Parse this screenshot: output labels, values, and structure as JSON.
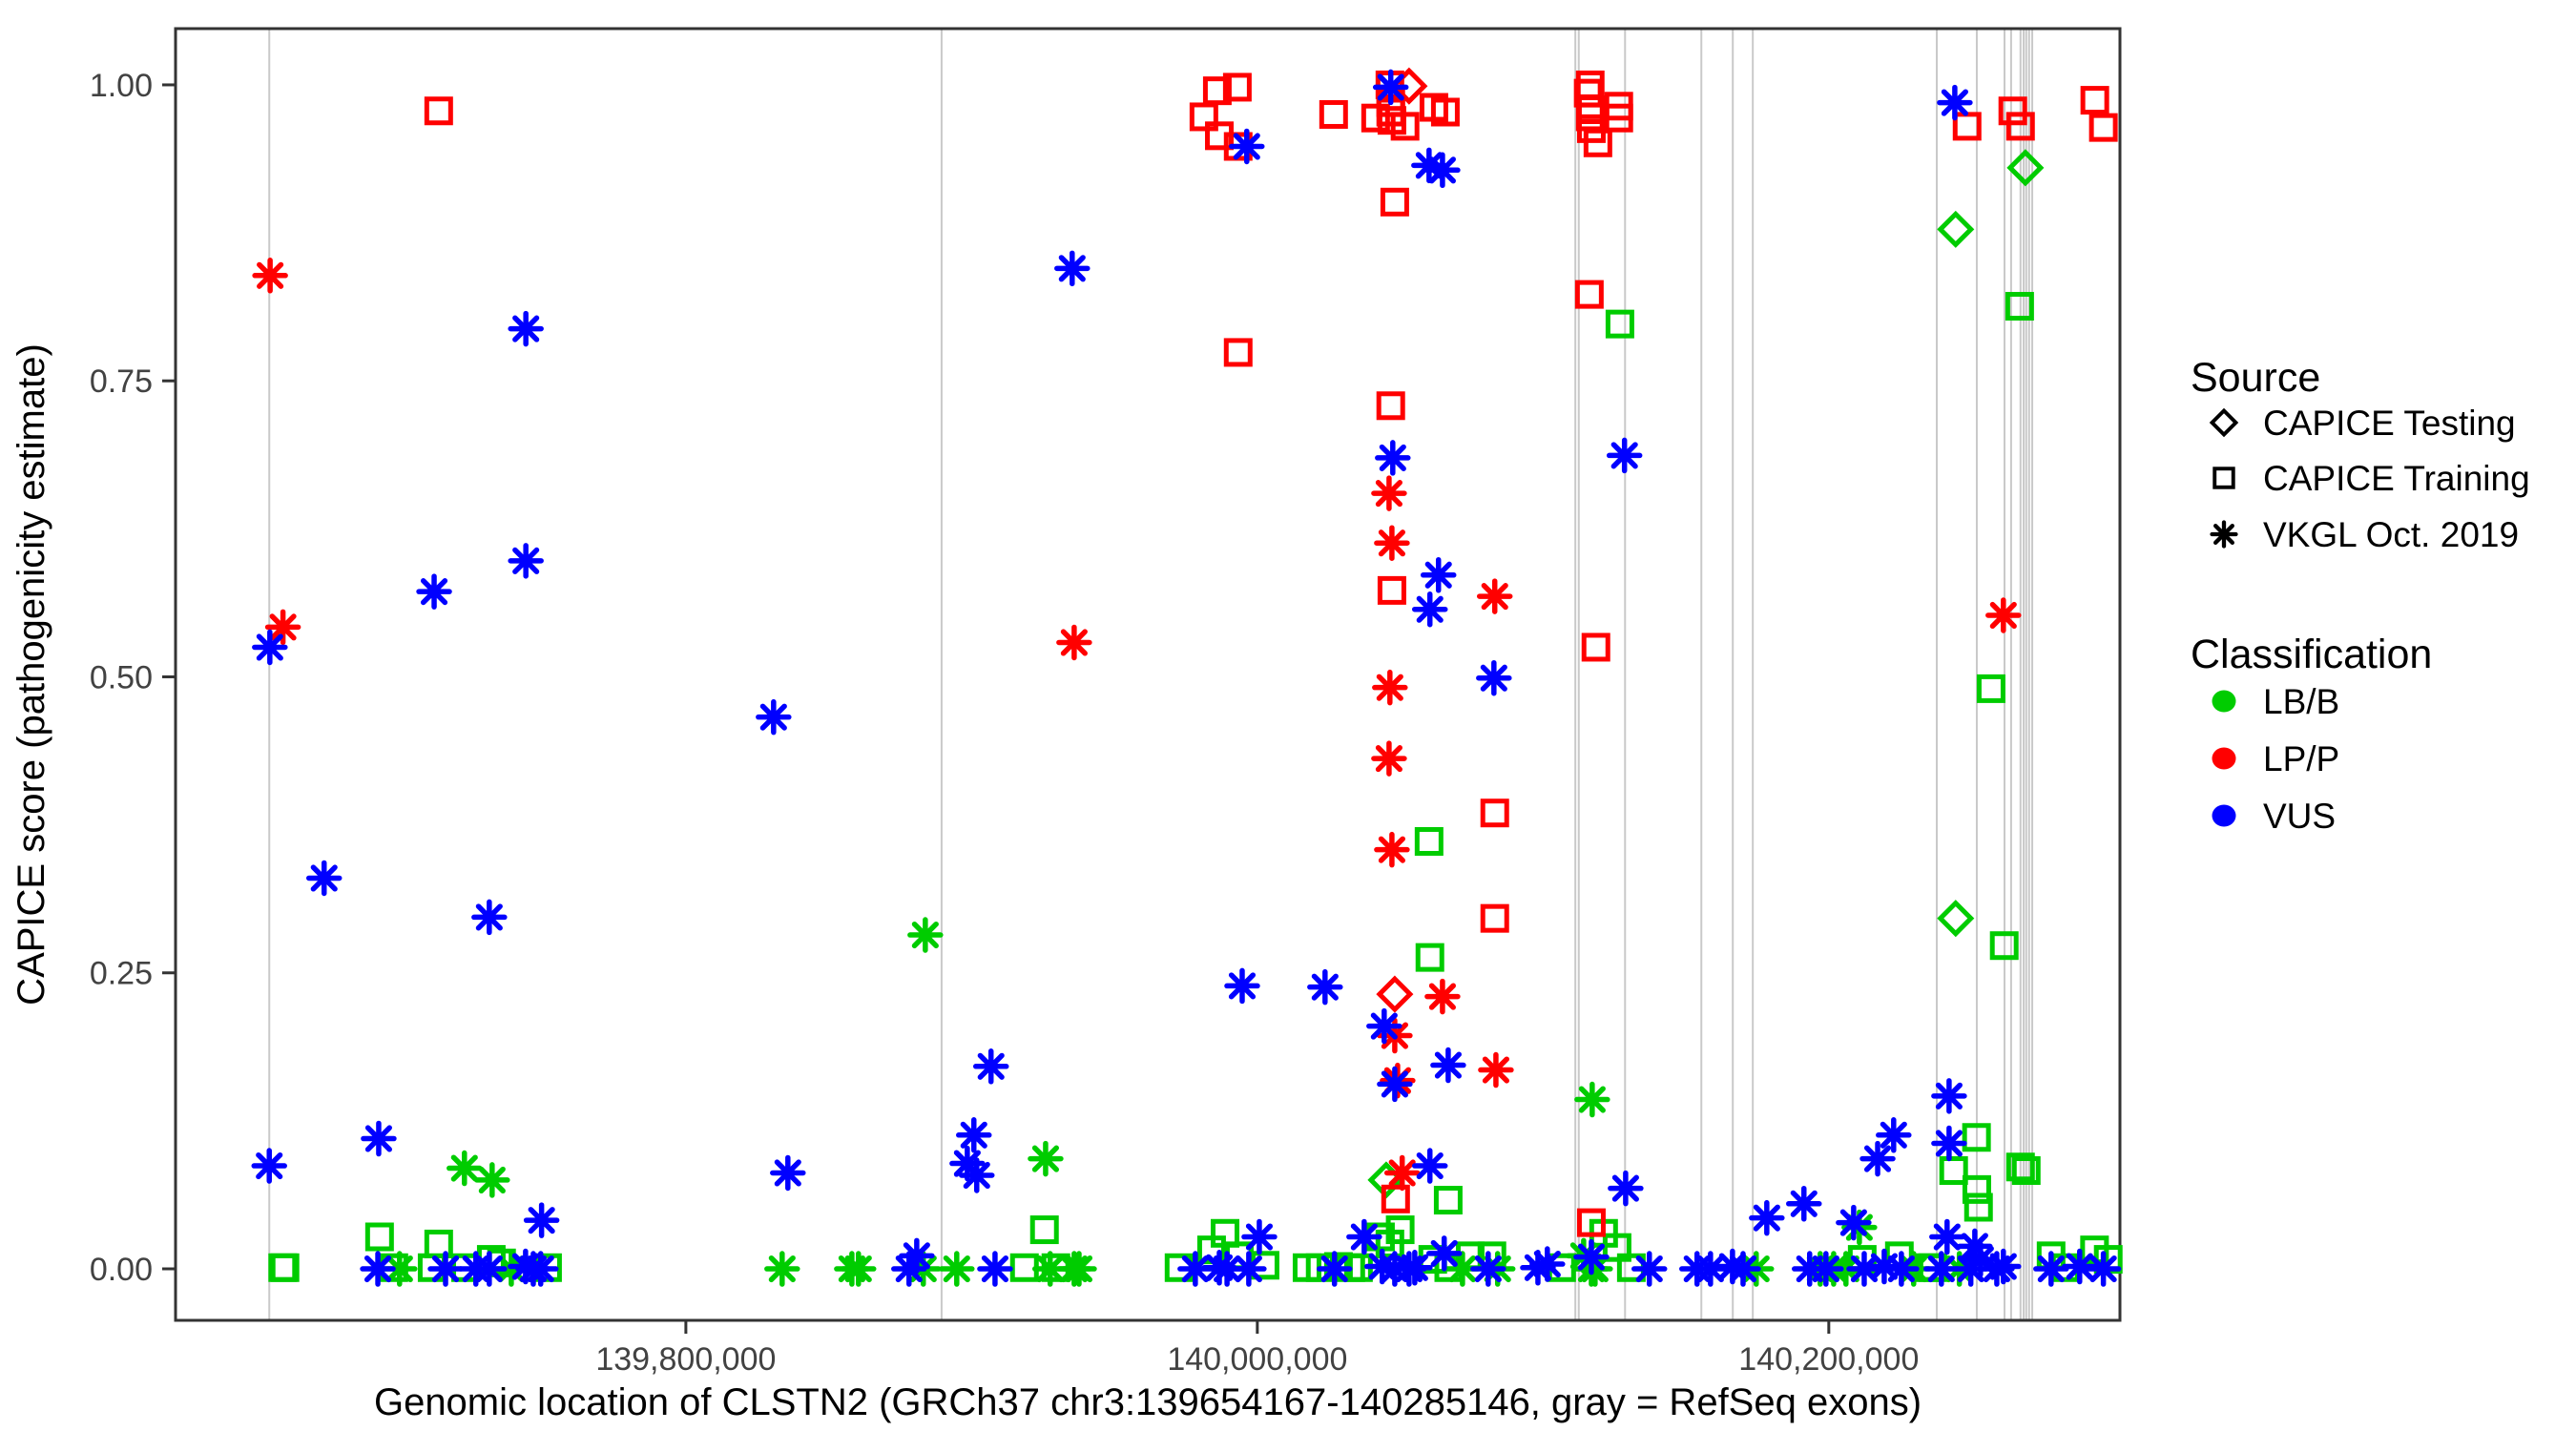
{
  "chart_data": {
    "type": "scatter",
    "title": "",
    "xlabel": "Genomic location of CLSTN2 (GRCh37 chr3:139654167-140285146, gray = RefSeq exons)",
    "ylabel": "CAPICE score (pathogenicity estimate)",
    "xlim": [
      139621400,
      140301900
    ],
    "ylim": [
      -0.0435,
      1.0475
    ],
    "grid": "off",
    "x_ticks": [
      {
        "value": 139800000,
        "label": "139,800,000"
      },
      {
        "value": 140000000,
        "label": "140,000,000"
      },
      {
        "value": 140200000,
        "label": "140,200,000"
      }
    ],
    "y_ticks": [
      {
        "value": 0.0,
        "label": "0.00"
      },
      {
        "value": 0.25,
        "label": "0.25"
      },
      {
        "value": 0.5,
        "label": "0.50"
      },
      {
        "value": 0.75,
        "label": "0.75"
      },
      {
        "value": 1.0,
        "label": "1.00"
      }
    ],
    "colors": {
      "LB/B": "#00cc00",
      "LP/P": "#ff0000",
      "VUS": "#0000ff",
      "exon": "#c9c9c9",
      "panel_border": "#333333",
      "tick": "#333333"
    },
    "refseq_exon_positions": [
      139654200,
      139889500,
      140111300,
      140112500,
      140128700,
      140155400,
      140166400,
      140173400,
      140237800,
      140251800,
      140261500,
      140263800,
      140267100,
      140268200,
      140269100,
      140270100,
      140271200
    ],
    "legend": {
      "source_title": "Source",
      "source_items": [
        {
          "label": "CAPICE Testing",
          "symbol": "diamond"
        },
        {
          "label": "CAPICE Training",
          "symbol": "square"
        },
        {
          "label": "VKGL Oct. 2019",
          "symbol": "asterisk"
        }
      ],
      "classification_title": "Classification",
      "classification_items": [
        {
          "label": "LB/B",
          "class": "LB/B"
        },
        {
          "label": "LP/P",
          "class": "LP/P"
        },
        {
          "label": "VUS",
          "class": "VUS"
        }
      ],
      "position": "right"
    },
    "series": [
      {
        "source": "CAPICE Testing",
        "classification": "LB/B",
        "symbol": "diamond",
        "points": [
          [
            140268800,
            0.93
          ],
          [
            140244400,
            0.878
          ],
          [
            140244400,
            0.296
          ],
          [
            140045100,
            0.075
          ]
        ]
      },
      {
        "source": "CAPICE Testing",
        "classification": "LP/P",
        "symbol": "diamond",
        "points": [
          [
            140053100,
            0.999
          ],
          [
            140048100,
            0.232
          ]
        ]
      },
      {
        "source": "CAPICE Training",
        "classification": "LB/B",
        "symbol": "square",
        "points": [
          [
            139658900,
            0.001
          ],
          [
            139659700,
            0.001
          ],
          [
            139692800,
            0.027
          ],
          [
            139697800,
            0.001
          ],
          [
            139711200,
            0.001
          ],
          [
            139713500,
            0.021
          ],
          [
            139722900,
            0.001
          ],
          [
            139731900,
            0.008
          ],
          [
            139735500,
            0.005
          ],
          [
            139751600,
            0.001
          ],
          [
            139918500,
            0.001
          ],
          [
            139925500,
            0.033
          ],
          [
            139929500,
            0.001
          ],
          [
            139972600,
            0.001
          ],
          [
            139984000,
            0.016
          ],
          [
            139988700,
            0.03
          ],
          [
            139993700,
            0.011
          ],
          [
            140002700,
            0.003
          ],
          [
            140017400,
            0.001
          ],
          [
            140022000,
            0.001
          ],
          [
            140028400,
            0.002
          ],
          [
            140032700,
            0.001
          ],
          [
            140035400,
            0.001
          ],
          [
            140043100,
            0.027
          ],
          [
            140046400,
            0.021
          ],
          [
            140050000,
            0.033
          ],
          [
            140060100,
            0.361
          ],
          [
            140060400,
            0.263
          ],
          [
            140061400,
            0.008
          ],
          [
            140066800,
            0.058
          ],
          [
            140067000,
            0.001
          ],
          [
            140074500,
            0.011
          ],
          [
            140082100,
            0.011
          ],
          [
            140106500,
            0.001
          ],
          [
            140121200,
            0.03
          ],
          [
            140125900,
            0.018
          ],
          [
            140126900,
            0.798
          ],
          [
            140130900,
            0.001
          ],
          [
            140211700,
            0.008
          ],
          [
            140224700,
            0.011
          ],
          [
            140235100,
            0.001
          ],
          [
            140236400,
            0.001
          ],
          [
            140243700,
            0.083
          ],
          [
            140251700,
            0.111
          ],
          [
            140251800,
            0.067
          ],
          [
            140252400,
            0.052
          ],
          [
            140256800,
            0.49
          ],
          [
            140261400,
            0.273
          ],
          [
            140266800,
            0.813
          ],
          [
            140267100,
            0.086
          ],
          [
            140269100,
            0.083
          ],
          [
            140277800,
            0.011
          ],
          [
            140282800,
            0.001
          ],
          [
            140293000,
            0.016
          ],
          [
            140297800,
            0.008
          ]
        ]
      },
      {
        "source": "CAPICE Training",
        "classification": "LP/P",
        "symbol": "square",
        "points": [
          [
            139713500,
            0.978
          ],
          [
            139981300,
            0.973
          ],
          [
            139986000,
            0.995
          ],
          [
            139986700,
            0.957
          ],
          [
            139993000,
            0.998
          ],
          [
            139993300,
            0.948
          ],
          [
            139993300,
            0.774
          ],
          [
            140026700,
            0.975
          ],
          [
            140041400,
            0.972
          ],
          [
            140046400,
            1.0
          ],
          [
            140046700,
            0.985
          ],
          [
            140046700,
            0.977
          ],
          [
            140047100,
            0.97
          ],
          [
            140046700,
            0.729
          ],
          [
            140047100,
            0.573
          ],
          [
            140048100,
            0.901
          ],
          [
            140048400,
            0.059
          ],
          [
            140051700,
            0.965
          ],
          [
            140061800,
            0.981
          ],
          [
            140065800,
            0.977
          ],
          [
            140083100,
            0.385
          ],
          [
            140083100,
            0.296
          ],
          [
            140115800,
            0.993
          ],
          [
            140116500,
            1.0
          ],
          [
            140116500,
            0.973
          ],
          [
            140116900,
            0.979
          ],
          [
            140116900,
            0.963
          ],
          [
            140116900,
            0.039
          ],
          [
            140119200,
            0.951
          ],
          [
            140118500,
            0.525
          ],
          [
            140126500,
            0.982
          ],
          [
            140126500,
            0.972
          ],
          [
            140116200,
            0.823
          ],
          [
            140248400,
            0.965
          ],
          [
            140264400,
            0.978
          ],
          [
            140267100,
            0.965
          ],
          [
            140293100,
            0.987
          ],
          [
            140296100,
            0.964
          ]
        ]
      },
      {
        "source": "VKGL Oct. 2019",
        "classification": "LB/B",
        "symbol": "asterisk",
        "points": [
          [
            139722500,
            0.085
          ],
          [
            139732200,
            0.075
          ],
          [
            139883800,
            0.282
          ],
          [
            139925900,
            0.093
          ],
          [
            140117200,
            0.143
          ],
          [
            140210700,
            0.035
          ],
          [
            140114200,
            0.011
          ],
          [
            139699800,
            0.0
          ],
          [
            139738900,
            0.0
          ],
          [
            139833700,
            0.0
          ],
          [
            139858100,
            0.0
          ],
          [
            139860400,
            0.0
          ],
          [
            139883100,
            0.0
          ],
          [
            139894800,
            0.0
          ],
          [
            139927500,
            0.0
          ],
          [
            139935900,
            0.0
          ],
          [
            139937600,
            0.0
          ],
          [
            140071800,
            0.0
          ],
          [
            140084100,
            0.0
          ],
          [
            140116900,
            0.0
          ],
          [
            140118200,
            0.0
          ],
          [
            140174600,
            0.0
          ],
          [
            140197000,
            0.0
          ],
          [
            140201700,
            0.0
          ],
          [
            140206000,
            0.0
          ],
          [
            140229700,
            0.0
          ],
          [
            140245700,
            0.0
          ]
        ]
      },
      {
        "source": "VKGL Oct. 2019",
        "classification": "LP/P",
        "symbol": "asterisk",
        "points": [
          [
            139654500,
            0.839
          ],
          [
            139659000,
            0.542
          ],
          [
            139935900,
            0.529
          ],
          [
            140046100,
            0.655
          ],
          [
            140047100,
            0.613
          ],
          [
            140083100,
            0.568
          ],
          [
            140046400,
            0.491
          ],
          [
            140046100,
            0.431
          ],
          [
            140047100,
            0.354
          ],
          [
            140064800,
            0.23
          ],
          [
            140048100,
            0.197
          ],
          [
            140083500,
            0.168
          ],
          [
            140049100,
            0.159
          ],
          [
            140261100,
            0.552
          ],
          [
            140050700,
            0.081
          ]
        ]
      },
      {
        "source": "VKGL Oct. 2019",
        "classification": "VUS",
        "symbol": "asterisk",
        "points": [
          [
            139654400,
            0.525
          ],
          [
            139654200,
            0.087
          ],
          [
            139673400,
            0.33
          ],
          [
            139692500,
            0.11
          ],
          [
            139711900,
            0.572
          ],
          [
            139731200,
            0.297
          ],
          [
            139744000,
            0.794
          ],
          [
            139744000,
            0.598
          ],
          [
            139749500,
            0.041
          ],
          [
            139830700,
            0.466
          ],
          [
            139835700,
            0.081
          ],
          [
            139880800,
            0.011
          ],
          [
            139898500,
            0.089
          ],
          [
            139900800,
            0.113
          ],
          [
            139901800,
            0.079
          ],
          [
            139906800,
            0.171
          ],
          [
            139935200,
            0.845
          ],
          [
            139994700,
            0.239
          ],
          [
            139996300,
            0.948
          ],
          [
            140000700,
            0.027
          ],
          [
            140023700,
            0.238
          ],
          [
            140037400,
            0.027
          ],
          [
            140044400,
            0.205
          ],
          [
            140046700,
            0.998
          ],
          [
            140047400,
            0.685
          ],
          [
            140048100,
            0.156
          ],
          [
            140060100,
            0.932
          ],
          [
            140060400,
            0.557
          ],
          [
            140060400,
            0.087
          ],
          [
            140063400,
            0.586
          ],
          [
            140064800,
            0.928
          ],
          [
            140065400,
            0.013
          ],
          [
            140066800,
            0.172
          ],
          [
            140082800,
            0.499
          ],
          [
            140128500,
            0.687
          ],
          [
            140128900,
            0.068
          ],
          [
            140101500,
            0.004
          ],
          [
            140098200,
            0.001
          ],
          [
            140178300,
            0.043
          ],
          [
            140191300,
            0.055
          ],
          [
            140208700,
            0.039
          ],
          [
            140217100,
            0.093
          ],
          [
            140222700,
            0.113
          ],
          [
            140242100,
            0.146
          ],
          [
            140242100,
            0.106
          ],
          [
            140241400,
            0.027
          ],
          [
            140244100,
            0.985
          ],
          [
            140251100,
            0.019
          ],
          [
            140253100,
            0.008
          ],
          [
            139692200,
            0.0
          ],
          [
            139715900,
            0.0
          ],
          [
            139726500,
            0.0
          ],
          [
            139731200,
            0.0
          ],
          [
            139743900,
            0.002
          ],
          [
            139746600,
            0.0
          ],
          [
            139749200,
            0.0
          ],
          [
            139878100,
            0.0
          ],
          [
            139908200,
            0.0
          ],
          [
            139978300,
            0.0
          ],
          [
            139986700,
            0.001
          ],
          [
            139989400,
            0.0
          ],
          [
            139997000,
            0.0
          ],
          [
            140027000,
            0.0
          ],
          [
            140043700,
            0.002
          ],
          [
            140048100,
            0.0
          ],
          [
            140053100,
            0.0
          ],
          [
            140055100,
            0.001
          ],
          [
            140080800,
            0.0
          ],
          [
            140116900,
            0.01
          ],
          [
            140137200,
            0.0
          ],
          [
            140153900,
            0.0
          ],
          [
            140158600,
            0.0
          ],
          [
            140166300,
            0.002
          ],
          [
            140170000,
            0.0
          ],
          [
            140193300,
            0.0
          ],
          [
            140199000,
            0.0
          ],
          [
            140212400,
            0.0
          ],
          [
            140219400,
            0.002
          ],
          [
            140225400,
            0.0
          ],
          [
            140239400,
            0.0
          ],
          [
            140249700,
            0.0
          ],
          [
            140258800,
            0.0
          ],
          [
            140261100,
            0.002
          ],
          [
            140277800,
            0.0
          ],
          [
            140287800,
            0.002
          ],
          [
            140296100,
            0.0
          ]
        ]
      }
    ]
  }
}
